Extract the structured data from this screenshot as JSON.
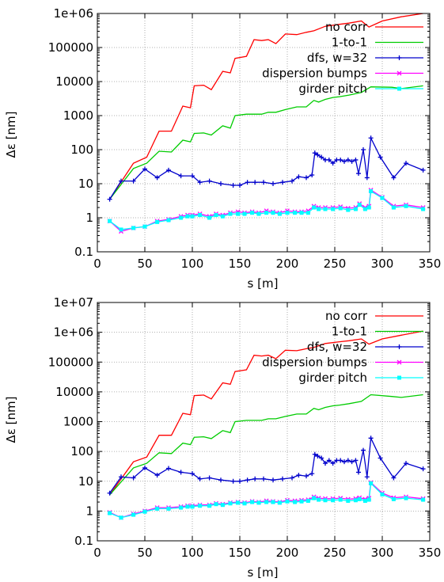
{
  "colors": {
    "no_corr": "#ff0000",
    "one_to_one": "#00cc00",
    "dfs": "#0000cc",
    "dispersion_bumps": "#ff00ff",
    "girder_pitch": "#00ffff",
    "grid": "#999999",
    "axes": "#000000"
  },
  "chart_data": [
    {
      "type": "line",
      "xlabel": "s [m]",
      "ylabel": "Δε [nm]",
      "xlim": [
        0,
        350
      ],
      "ylim": [
        0.1,
        1000000
      ],
      "yscale": "log",
      "grid": true,
      "legend": "top-right",
      "x_ticks": [
        "0",
        "50",
        "100",
        "150",
        "200",
        "250",
        "300",
        "350"
      ],
      "y_ticks": [
        "0.1",
        "1",
        "10",
        "100",
        "1000",
        "10000",
        "100000",
        "1e+06"
      ],
      "series": [
        {
          "name": "no corr",
          "marker": "none",
          "color_key": "no_corr",
          "x": [
            13,
            38,
            52,
            65,
            78,
            90,
            98,
            102,
            112,
            120,
            132,
            140,
            145,
            157,
            165,
            173,
            180,
            188,
            198,
            210,
            220,
            228,
            240,
            255,
            265,
            278,
            286,
            300,
            320,
            343
          ],
          "y": [
            3.5,
            40,
            60,
            350,
            350,
            1900,
            1700,
            7500,
            7800,
            5800,
            20000,
            18000,
            48000,
            55000,
            170000,
            160000,
            170000,
            130000,
            250000,
            240000,
            280000,
            310000,
            420000,
            480000,
            520000,
            600000,
            400000,
            600000,
            800000,
            1000000
          ]
        },
        {
          "name": "1-to-1",
          "marker": "none",
          "color_key": "one_to_one",
          "x": [
            13,
            38,
            52,
            65,
            78,
            90,
            98,
            102,
            112,
            120,
            132,
            140,
            145,
            157,
            165,
            173,
            180,
            188,
            198,
            210,
            220,
            228,
            233,
            240,
            248,
            255,
            265,
            278,
            288,
            310,
            320,
            343
          ],
          "y": [
            3.5,
            28,
            40,
            90,
            85,
            190,
            170,
            300,
            310,
            270,
            500,
            430,
            1000,
            1100,
            1100,
            1100,
            1250,
            1250,
            1500,
            1800,
            1800,
            2800,
            2500,
            3000,
            3400,
            3600,
            4000,
            4800,
            7000,
            6800,
            6200,
            7500
          ]
        },
        {
          "name": "dfs, w=32",
          "marker": "plus",
          "color_key": "dfs",
          "x": [
            13,
            25,
            38,
            50,
            63,
            75,
            88,
            100,
            108,
            118,
            130,
            143,
            150,
            158,
            166,
            175,
            185,
            195,
            205,
            212,
            220,
            226,
            229,
            232,
            236,
            240,
            244,
            248,
            252,
            256,
            260,
            264,
            268,
            272,
            275,
            280,
            284,
            288,
            298,
            312,
            325,
            343
          ],
          "y": [
            3.5,
            12,
            12,
            27,
            15,
            25,
            17,
            17,
            11,
            12,
            10,
            9,
            9,
            11,
            11,
            11,
            10,
            11,
            12,
            16,
            15,
            18,
            80,
            70,
            60,
            50,
            50,
            40,
            50,
            50,
            45,
            50,
            45,
            50,
            20,
            100,
            15,
            220,
            60,
            15,
            40,
            25
          ]
        },
        {
          "name": "dispersion bumps",
          "marker": "x",
          "color_key": "dispersion_bumps",
          "x": [
            13,
            25,
            38,
            50,
            63,
            75,
            88,
            95,
            100,
            108,
            118,
            125,
            132,
            140,
            148,
            155,
            163,
            170,
            178,
            185,
            192,
            200,
            208,
            215,
            222,
            228,
            233,
            240,
            248,
            256,
            264,
            272,
            276,
            282,
            286,
            288,
            300,
            312,
            325,
            343
          ],
          "y": [
            0.8,
            0.4,
            0.5,
            0.55,
            0.8,
            0.9,
            1.1,
            1.2,
            1.2,
            1.3,
            1.1,
            1.3,
            1.2,
            1.4,
            1.5,
            1.4,
            1.5,
            1.4,
            1.6,
            1.5,
            1.4,
            1.6,
            1.5,
            1.5,
            1.6,
            2.2,
            2.0,
            2.0,
            2.0,
            2.1,
            1.9,
            2.0,
            2.6,
            2.0,
            2.2,
            6.5,
            4.0,
            2.2,
            2.4,
            2.0
          ]
        },
        {
          "name": "girder pitch",
          "marker": "square",
          "color_key": "girder_pitch",
          "x": [
            13,
            25,
            38,
            50,
            63,
            75,
            88,
            95,
            100,
            108,
            118,
            125,
            132,
            140,
            148,
            155,
            163,
            170,
            178,
            185,
            192,
            200,
            208,
            215,
            222,
            228,
            233,
            240,
            248,
            256,
            264,
            272,
            276,
            282,
            286,
            288,
            300,
            312,
            325,
            343
          ],
          "y": [
            0.8,
            0.45,
            0.5,
            0.55,
            0.75,
            0.85,
            1.0,
            1.1,
            1.1,
            1.2,
            1.0,
            1.2,
            1.1,
            1.3,
            1.3,
            1.3,
            1.4,
            1.3,
            1.4,
            1.4,
            1.3,
            1.4,
            1.4,
            1.4,
            1.4,
            2.0,
            1.8,
            1.8,
            1.8,
            1.9,
            1.7,
            1.8,
            2.4,
            1.8,
            2.0,
            6.0,
            3.8,
            2.0,
            2.2,
            1.8
          ]
        }
      ]
    },
    {
      "type": "line",
      "xlabel": "s [m]",
      "ylabel": "Δε [nm]",
      "xlim": [
        0,
        350
      ],
      "ylim": [
        0.1,
        10000000
      ],
      "yscale": "log",
      "grid": true,
      "legend": "top-right",
      "x_ticks": [
        "0",
        "50",
        "100",
        "150",
        "200",
        "250",
        "300",
        "350"
      ],
      "y_ticks": [
        "0.1",
        "1",
        "10",
        "100",
        "1000",
        "10000",
        "100000",
        "1e+06",
        "1e+07"
      ],
      "series": [
        {
          "name": "no corr",
          "marker": "none",
          "color_key": "no_corr",
          "x": [
            13,
            38,
            52,
            65,
            78,
            90,
            98,
            102,
            112,
            120,
            132,
            140,
            145,
            157,
            165,
            173,
            180,
            188,
            198,
            210,
            220,
            228,
            240,
            255,
            265,
            278,
            286,
            300,
            320,
            343
          ],
          "y": [
            3.5,
            45,
            65,
            350,
            350,
            1900,
            1700,
            7500,
            7800,
            5800,
            20000,
            18000,
            48000,
            55000,
            170000,
            160000,
            170000,
            130000,
            250000,
            240000,
            280000,
            310000,
            420000,
            480000,
            520000,
            600000,
            400000,
            600000,
            800000,
            1100000
          ]
        },
        {
          "name": "1-to-1",
          "marker": "none",
          "color_key": "one_to_one",
          "x": [
            13,
            38,
            52,
            65,
            78,
            90,
            98,
            102,
            112,
            120,
            132,
            140,
            145,
            157,
            165,
            173,
            180,
            188,
            198,
            210,
            220,
            228,
            233,
            240,
            248,
            255,
            265,
            278,
            288,
            310,
            320,
            343
          ],
          "y": [
            3.5,
            28,
            40,
            90,
            85,
            190,
            170,
            300,
            310,
            270,
            500,
            430,
            1000,
            1100,
            1100,
            1100,
            1250,
            1250,
            1500,
            1800,
            1800,
            2800,
            2500,
            3000,
            3400,
            3600,
            4000,
            4800,
            8000,
            7000,
            6500,
            8000
          ]
        },
        {
          "name": "dfs, w=32",
          "marker": "plus",
          "color_key": "dfs",
          "x": [
            13,
            25,
            38,
            50,
            63,
            75,
            88,
            100,
            108,
            118,
            130,
            143,
            150,
            158,
            166,
            175,
            185,
            195,
            205,
            212,
            220,
            226,
            229,
            232,
            236,
            240,
            244,
            248,
            252,
            256,
            260,
            264,
            268,
            272,
            275,
            280,
            284,
            288,
            298,
            312,
            325,
            343
          ],
          "y": [
            4,
            14,
            13,
            28,
            16,
            27,
            20,
            18,
            12,
            13,
            11,
            10,
            10,
            11,
            12,
            12,
            11,
            12,
            13,
            16,
            15,
            18,
            80,
            70,
            60,
            40,
            50,
            40,
            50,
            50,
            45,
            50,
            45,
            50,
            20,
            110,
            14,
            280,
            60,
            13,
            40,
            26
          ]
        },
        {
          "name": "dispersion bumps",
          "marker": "x",
          "color_key": "dispersion_bumps",
          "x": [
            13,
            25,
            38,
            50,
            63,
            75,
            88,
            95,
            100,
            108,
            118,
            125,
            132,
            140,
            148,
            155,
            163,
            170,
            178,
            185,
            192,
            200,
            208,
            215,
            222,
            228,
            233,
            240,
            248,
            256,
            264,
            272,
            276,
            282,
            286,
            288,
            300,
            312,
            325,
            343
          ],
          "y": [
            0.9,
            0.6,
            0.8,
            1.0,
            1.3,
            1.3,
            1.4,
            1.5,
            1.5,
            1.6,
            1.6,
            1.8,
            1.7,
            1.9,
            2.0,
            1.9,
            2.1,
            2.0,
            2.2,
            2.1,
            2.0,
            2.3,
            2.2,
            2.3,
            2.4,
            3.0,
            2.7,
            2.6,
            2.6,
            2.7,
            2.5,
            2.6,
            2.8,
            2.5,
            2.7,
            9.0,
            4.0,
            2.8,
            3.0,
            2.6
          ]
        },
        {
          "name": "girder pitch",
          "marker": "square",
          "color_key": "girder_pitch",
          "x": [
            13,
            25,
            38,
            50,
            63,
            75,
            88,
            95,
            100,
            108,
            118,
            125,
            132,
            140,
            148,
            155,
            163,
            170,
            178,
            185,
            192,
            200,
            208,
            215,
            222,
            228,
            233,
            240,
            248,
            256,
            264,
            272,
            276,
            282,
            286,
            288,
            300,
            312,
            325,
            343
          ],
          "y": [
            0.85,
            0.6,
            0.75,
            0.95,
            1.2,
            1.2,
            1.3,
            1.4,
            1.4,
            1.5,
            1.5,
            1.7,
            1.6,
            1.8,
            1.9,
            1.8,
            2.0,
            1.9,
            2.0,
            2.0,
            1.9,
            2.1,
            2.0,
            2.1,
            2.2,
            2.7,
            2.4,
            2.3,
            2.3,
            2.4,
            2.2,
            2.3,
            2.5,
            2.2,
            2.4,
            8.5,
            3.6,
            2.5,
            2.7,
            2.4
          ]
        }
      ]
    }
  ]
}
